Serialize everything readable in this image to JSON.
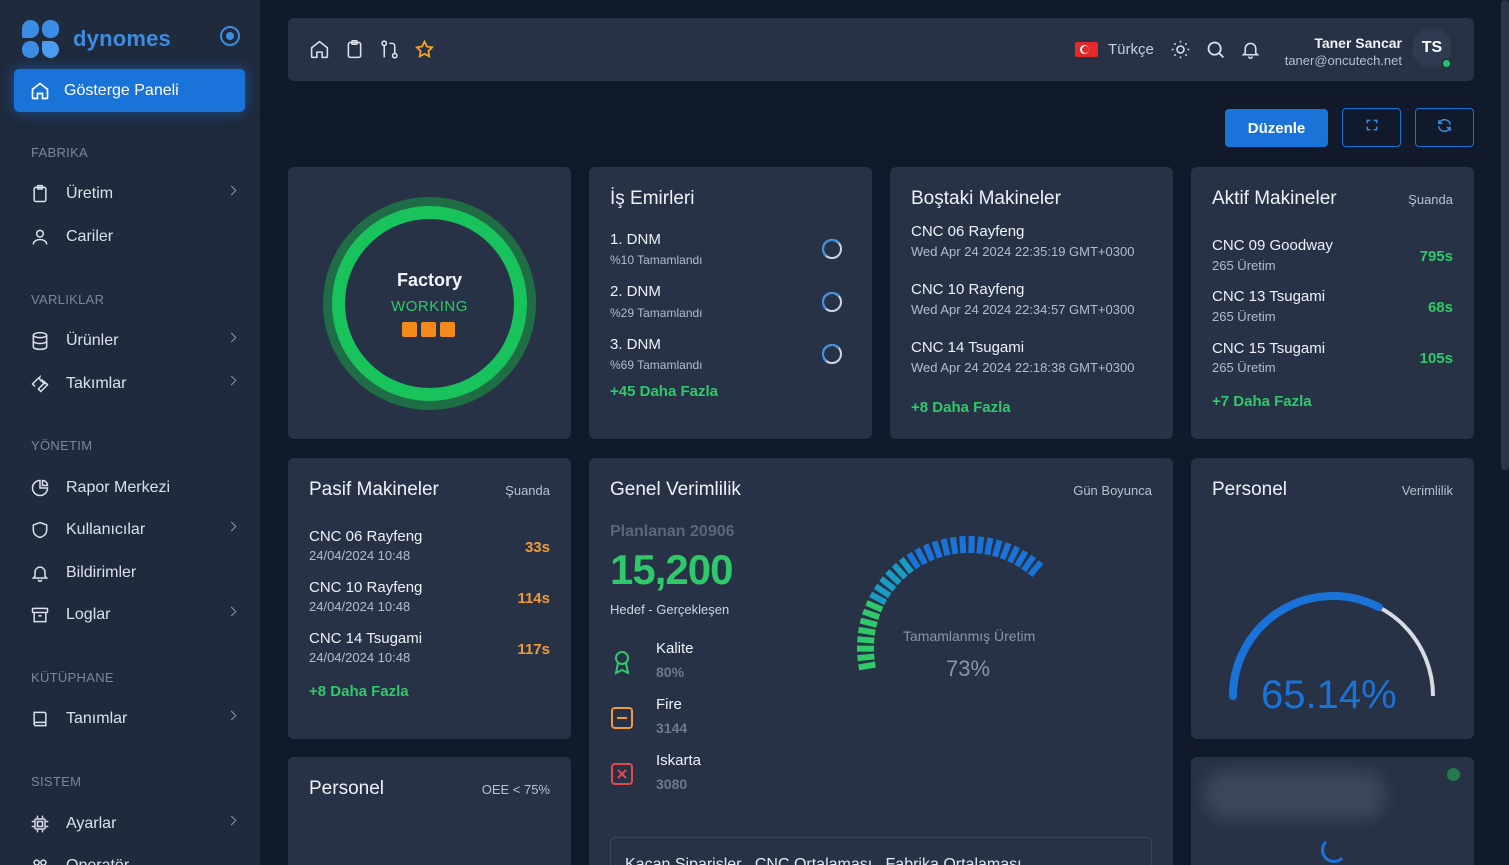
{
  "brand": {
    "name": "dynomes"
  },
  "sidebar": {
    "active": {
      "label": "Gösterge Paneli",
      "icon": "home-icon"
    },
    "sections": {
      "fabrika": "FABRIKA",
      "varliklar": "VARLIKLAR",
      "yonetim": "YÖNETIM",
      "kutuphane": "KÜTÜPHANE",
      "sistem": "SISTEM"
    },
    "items": {
      "uretim": "Üretim",
      "cariler": "Cariler",
      "urunler": "Ürünler",
      "takimlar": "Takımlar",
      "rapor": "Rapor Merkezi",
      "kullanicilar": "Kullanıcılar",
      "bildirimler": "Bildirimler",
      "loglar": "Loglar",
      "tanimlar": "Tanımlar",
      "ayarlar": "Ayarlar",
      "operator": "Operatör"
    }
  },
  "topbar": {
    "language": "Türkçe",
    "user_name": "Taner Sancar",
    "user_email": "taner@oncutech.net",
    "avatar_initials": "TS"
  },
  "actions": {
    "edit_label": "Düzenle"
  },
  "factory": {
    "title": "Factory",
    "status": "WORKING"
  },
  "work_orders": {
    "title": "İş Emirleri",
    "items": [
      {
        "name": "1. DNM",
        "sub": "%10 Tamamlandı"
      },
      {
        "name": "2. DNM",
        "sub": "%29 Tamamlandı"
      },
      {
        "name": "3. DNM",
        "sub": "%69 Tamamlandı"
      }
    ],
    "more": "+45 Daha Fazla"
  },
  "idle": {
    "title": "Boştaki Makineler",
    "items": [
      {
        "name": "CNC 06 Rayfeng",
        "sub": "Wed Apr 24 2024 22:35:19 GMT+0300"
      },
      {
        "name": "CNC 10 Rayfeng",
        "sub": "Wed Apr 24 2024 22:34:57 GMT+0300"
      },
      {
        "name": "CNC 14 Tsugami",
        "sub": "Wed Apr 24 2024 22:18:38 GMT+0300"
      }
    ],
    "more": "+8 Daha Fazla"
  },
  "active_machines": {
    "title": "Aktif Makineler",
    "tag": "Şuanda",
    "items": [
      {
        "name": "CNC 09 Goodway",
        "sub": "265 Üretim",
        "value": "795s"
      },
      {
        "name": "CNC 13 Tsugami",
        "sub": "265 Üretim",
        "value": "68s"
      },
      {
        "name": "CNC 15 Tsugami",
        "sub": "265 Üretim",
        "value": "105s"
      }
    ],
    "more": "+7 Daha Fazla"
  },
  "passive_machines": {
    "title": "Pasif Makineler",
    "tag": "Şuanda",
    "items": [
      {
        "name": "CNC 06 Rayfeng",
        "sub": "24/04/2024 10:48",
        "value": "33s"
      },
      {
        "name": "CNC 10 Rayfeng",
        "sub": "24/04/2024 10:48",
        "value": "114s"
      },
      {
        "name": "CNC 14 Tsugami",
        "sub": "24/04/2024 10:48",
        "value": "117s"
      }
    ],
    "more": "+8 Daha Fazla"
  },
  "efficiency": {
    "title": "Genel Verimlilik",
    "tag": "Gün Boyunca",
    "planned": "Planlanan 20906",
    "value": "15,200",
    "subtitle": "Hedef - Gerçekleşen",
    "metrics": [
      {
        "label": "Kalite",
        "value": "80%",
        "icon": "award-icon",
        "color": "#2fc96a"
      },
      {
        "label": "Fire",
        "value": "3144",
        "icon": "minus-square-icon",
        "color": "#f09a3a"
      },
      {
        "label": "Iskarta",
        "value": "3080",
        "icon": "x-square-icon",
        "color": "#e24a4a"
      }
    ],
    "gauge_label": "Tamamlanmış Üretim",
    "gauge_value": "73%",
    "gauge_fraction": 0.73,
    "sub_panel_text": "Kaçan Siparişler   CNC Ortalaması   Fabrika Ortalaması"
  },
  "personnel_eff": {
    "title": "Personel",
    "tag": "Verimlilik",
    "value": "65.14%",
    "fraction": 0.6514
  },
  "personnel_oee": {
    "title": "Personel",
    "tag": "OEE < 75%"
  },
  "colors": {
    "accent": "#1a73d9",
    "success": "#2fc96a",
    "warning": "#f09a3a",
    "danger": "#e24a4a"
  }
}
